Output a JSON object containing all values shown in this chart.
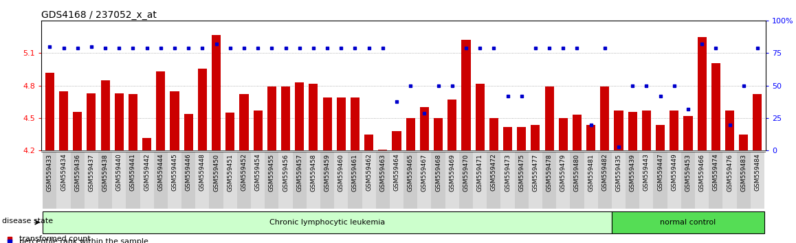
{
  "title": "GDS4168 / 237052_x_at",
  "samples": [
    "GSM559433",
    "GSM559434",
    "GSM559436",
    "GSM559437",
    "GSM559438",
    "GSM559440",
    "GSM559441",
    "GSM559442",
    "GSM559444",
    "GSM559445",
    "GSM559446",
    "GSM559448",
    "GSM559450",
    "GSM559451",
    "GSM559452",
    "GSM559454",
    "GSM559455",
    "GSM559456",
    "GSM559457",
    "GSM559458",
    "GSM559459",
    "GSM559460",
    "GSM559461",
    "GSM559462",
    "GSM559463",
    "GSM559464",
    "GSM559465",
    "GSM559467",
    "GSM559468",
    "GSM559469",
    "GSM559470",
    "GSM559471",
    "GSM559472",
    "GSM559473",
    "GSM559475",
    "GSM559477",
    "GSM559478",
    "GSM559479",
    "GSM559480",
    "GSM559481",
    "GSM559482",
    "GSM559435",
    "GSM559439",
    "GSM559443",
    "GSM559447",
    "GSM559449",
    "GSM559453",
    "GSM559466",
    "GSM559474",
    "GSM559476",
    "GSM559483",
    "GSM559484"
  ],
  "bar_values": [
    4.92,
    4.75,
    4.56,
    4.73,
    4.85,
    4.73,
    4.72,
    4.32,
    4.93,
    4.75,
    4.54,
    4.96,
    5.27,
    4.55,
    4.72,
    4.57,
    4.79,
    4.79,
    4.83,
    4.82,
    4.69,
    4.69,
    4.69,
    4.35,
    4.21,
    4.38,
    4.5,
    4.6,
    4.5,
    4.67,
    5.22,
    4.82,
    4.5,
    4.42,
    4.42,
    4.44,
    4.79,
    4.5,
    4.53,
    4.44,
    4.79,
    4.57,
    4.56,
    4.57,
    4.44,
    4.57,
    4.52,
    5.25,
    5.01,
    4.57,
    4.35,
    4.72
  ],
  "percentile_values": [
    80,
    79,
    79,
    80,
    79,
    79,
    79,
    79,
    79,
    79,
    79,
    79,
    82,
    79,
    79,
    79,
    79,
    79,
    79,
    79,
    79,
    79,
    79,
    79,
    79,
    38,
    50,
    29,
    50,
    50,
    79,
    79,
    79,
    42,
    42,
    79,
    79,
    79,
    79,
    20,
    79,
    3,
    50,
    50,
    42,
    50,
    32,
    82,
    79,
    20,
    50,
    79
  ],
  "disease_groups": [
    {
      "label": "Chronic lymphocytic leukemia",
      "start": 0,
      "end": 40,
      "color": "#ccffcc"
    },
    {
      "label": "normal control",
      "start": 41,
      "end": 51,
      "color": "#55dd55"
    }
  ],
  "ylim_left": [
    4.2,
    5.4
  ],
  "ylim_right": [
    0,
    100
  ],
  "yticks_left": [
    4.2,
    4.5,
    4.8,
    5.1
  ],
  "yticks_right": [
    0,
    25,
    50,
    75,
    100
  ],
  "bar_color": "#cc0000",
  "dot_color": "#0000cc",
  "bg_color": "#ffffff",
  "grid_color": "#999999",
  "title_fontsize": 10,
  "tick_fontsize": 6.5,
  "legend_fontsize": 8,
  "disease_label": "disease state"
}
